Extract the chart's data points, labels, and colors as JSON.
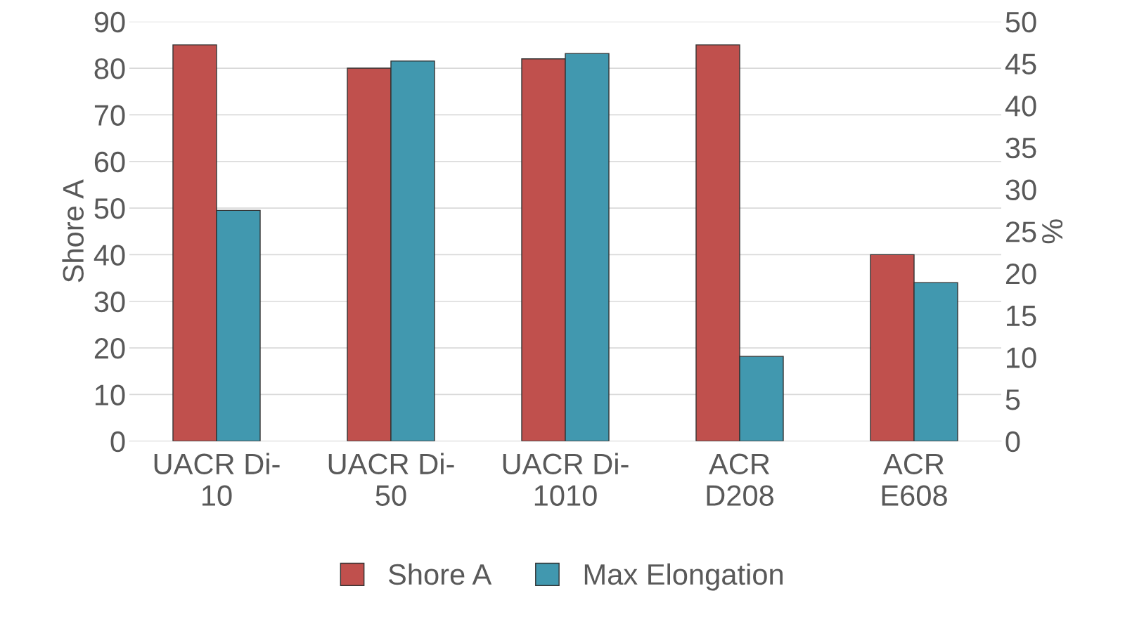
{
  "chart_data": {
    "type": "bar",
    "ylabel": "Shore A",
    "y2label": "%",
    "categories": [
      "UACR Di-\n10",
      "UACR Di-\n50",
      "UACR Di-\n1010",
      "ACR\nD208",
      "ACR\nE608"
    ],
    "series": [
      {
        "name": "Shore A",
        "color": "#c0504d",
        "values": [
          85,
          80,
          82,
          85,
          40
        ]
      },
      {
        "name": "Max Elongation",
        "color": "#4198af",
        "axis": "y2",
        "values": [
          27.5,
          45.3,
          46.2,
          10.1,
          18.9
        ]
      }
    ],
    "ylim": [
      0,
      90
    ],
    "yticks": [
      0,
      10,
      20,
      30,
      40,
      50,
      60,
      70,
      80,
      90
    ],
    "y2lim": [
      0,
      50
    ],
    "y2ticks": [
      0,
      5,
      10,
      15,
      20,
      25,
      30,
      35,
      40,
      45,
      50
    ],
    "grid": "y",
    "legend": "bottom"
  }
}
